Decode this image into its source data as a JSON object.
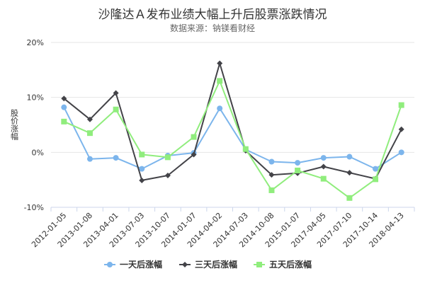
{
  "chart_data": {
    "type": "line",
    "title": "沙隆达Ａ发布业绩大幅上升后股票涨跌情况",
    "subtitle": "数据来源：钠镁看财经",
    "xlabel": "",
    "ylabel": "股价涨幅",
    "ylim": [
      -10,
      20
    ],
    "yticks": [
      20,
      10,
      0,
      -10
    ],
    "ytick_labels": [
      "20%",
      "10%",
      "0%",
      "-10%"
    ],
    "grid": "horizontal",
    "legend": "bottom",
    "categories": [
      "2012-01-05",
      "2013-01-08",
      "2013-04-01",
      "2013-07-03",
      "2013-10-07",
      "2014-01-07",
      "2014-04-02",
      "2014-07-03",
      "2014-10-08",
      "2015-01-07",
      "2017-04-05",
      "2017-07-10",
      "2017-10-14",
      "2018-04-13"
    ],
    "series": [
      {
        "name": "一天后涨幅",
        "color": "#7cb5ec",
        "marker": "circle",
        "values": [
          8.2,
          -1.2,
          -1.0,
          -3.0,
          -0.6,
          -0.1,
          8.0,
          0.5,
          -1.7,
          -1.9,
          -1.0,
          -0.8,
          -3.0,
          0.0
        ]
      },
      {
        "name": "三天后涨幅",
        "color": "#434348",
        "marker": "diamond",
        "values": [
          9.8,
          6.0,
          10.8,
          -5.1,
          -4.2,
          -0.4,
          16.2,
          0.3,
          -4.1,
          -3.8,
          -2.6,
          -3.7,
          -4.8,
          4.2
        ]
      },
      {
        "name": "五天后涨幅",
        "color": "#90ed7d",
        "marker": "square",
        "values": [
          5.6,
          3.5,
          7.8,
          -0.4,
          -0.9,
          2.8,
          13.0,
          0.6,
          -6.9,
          -3.3,
          -4.8,
          -8.3,
          -4.9,
          8.6
        ]
      }
    ]
  }
}
